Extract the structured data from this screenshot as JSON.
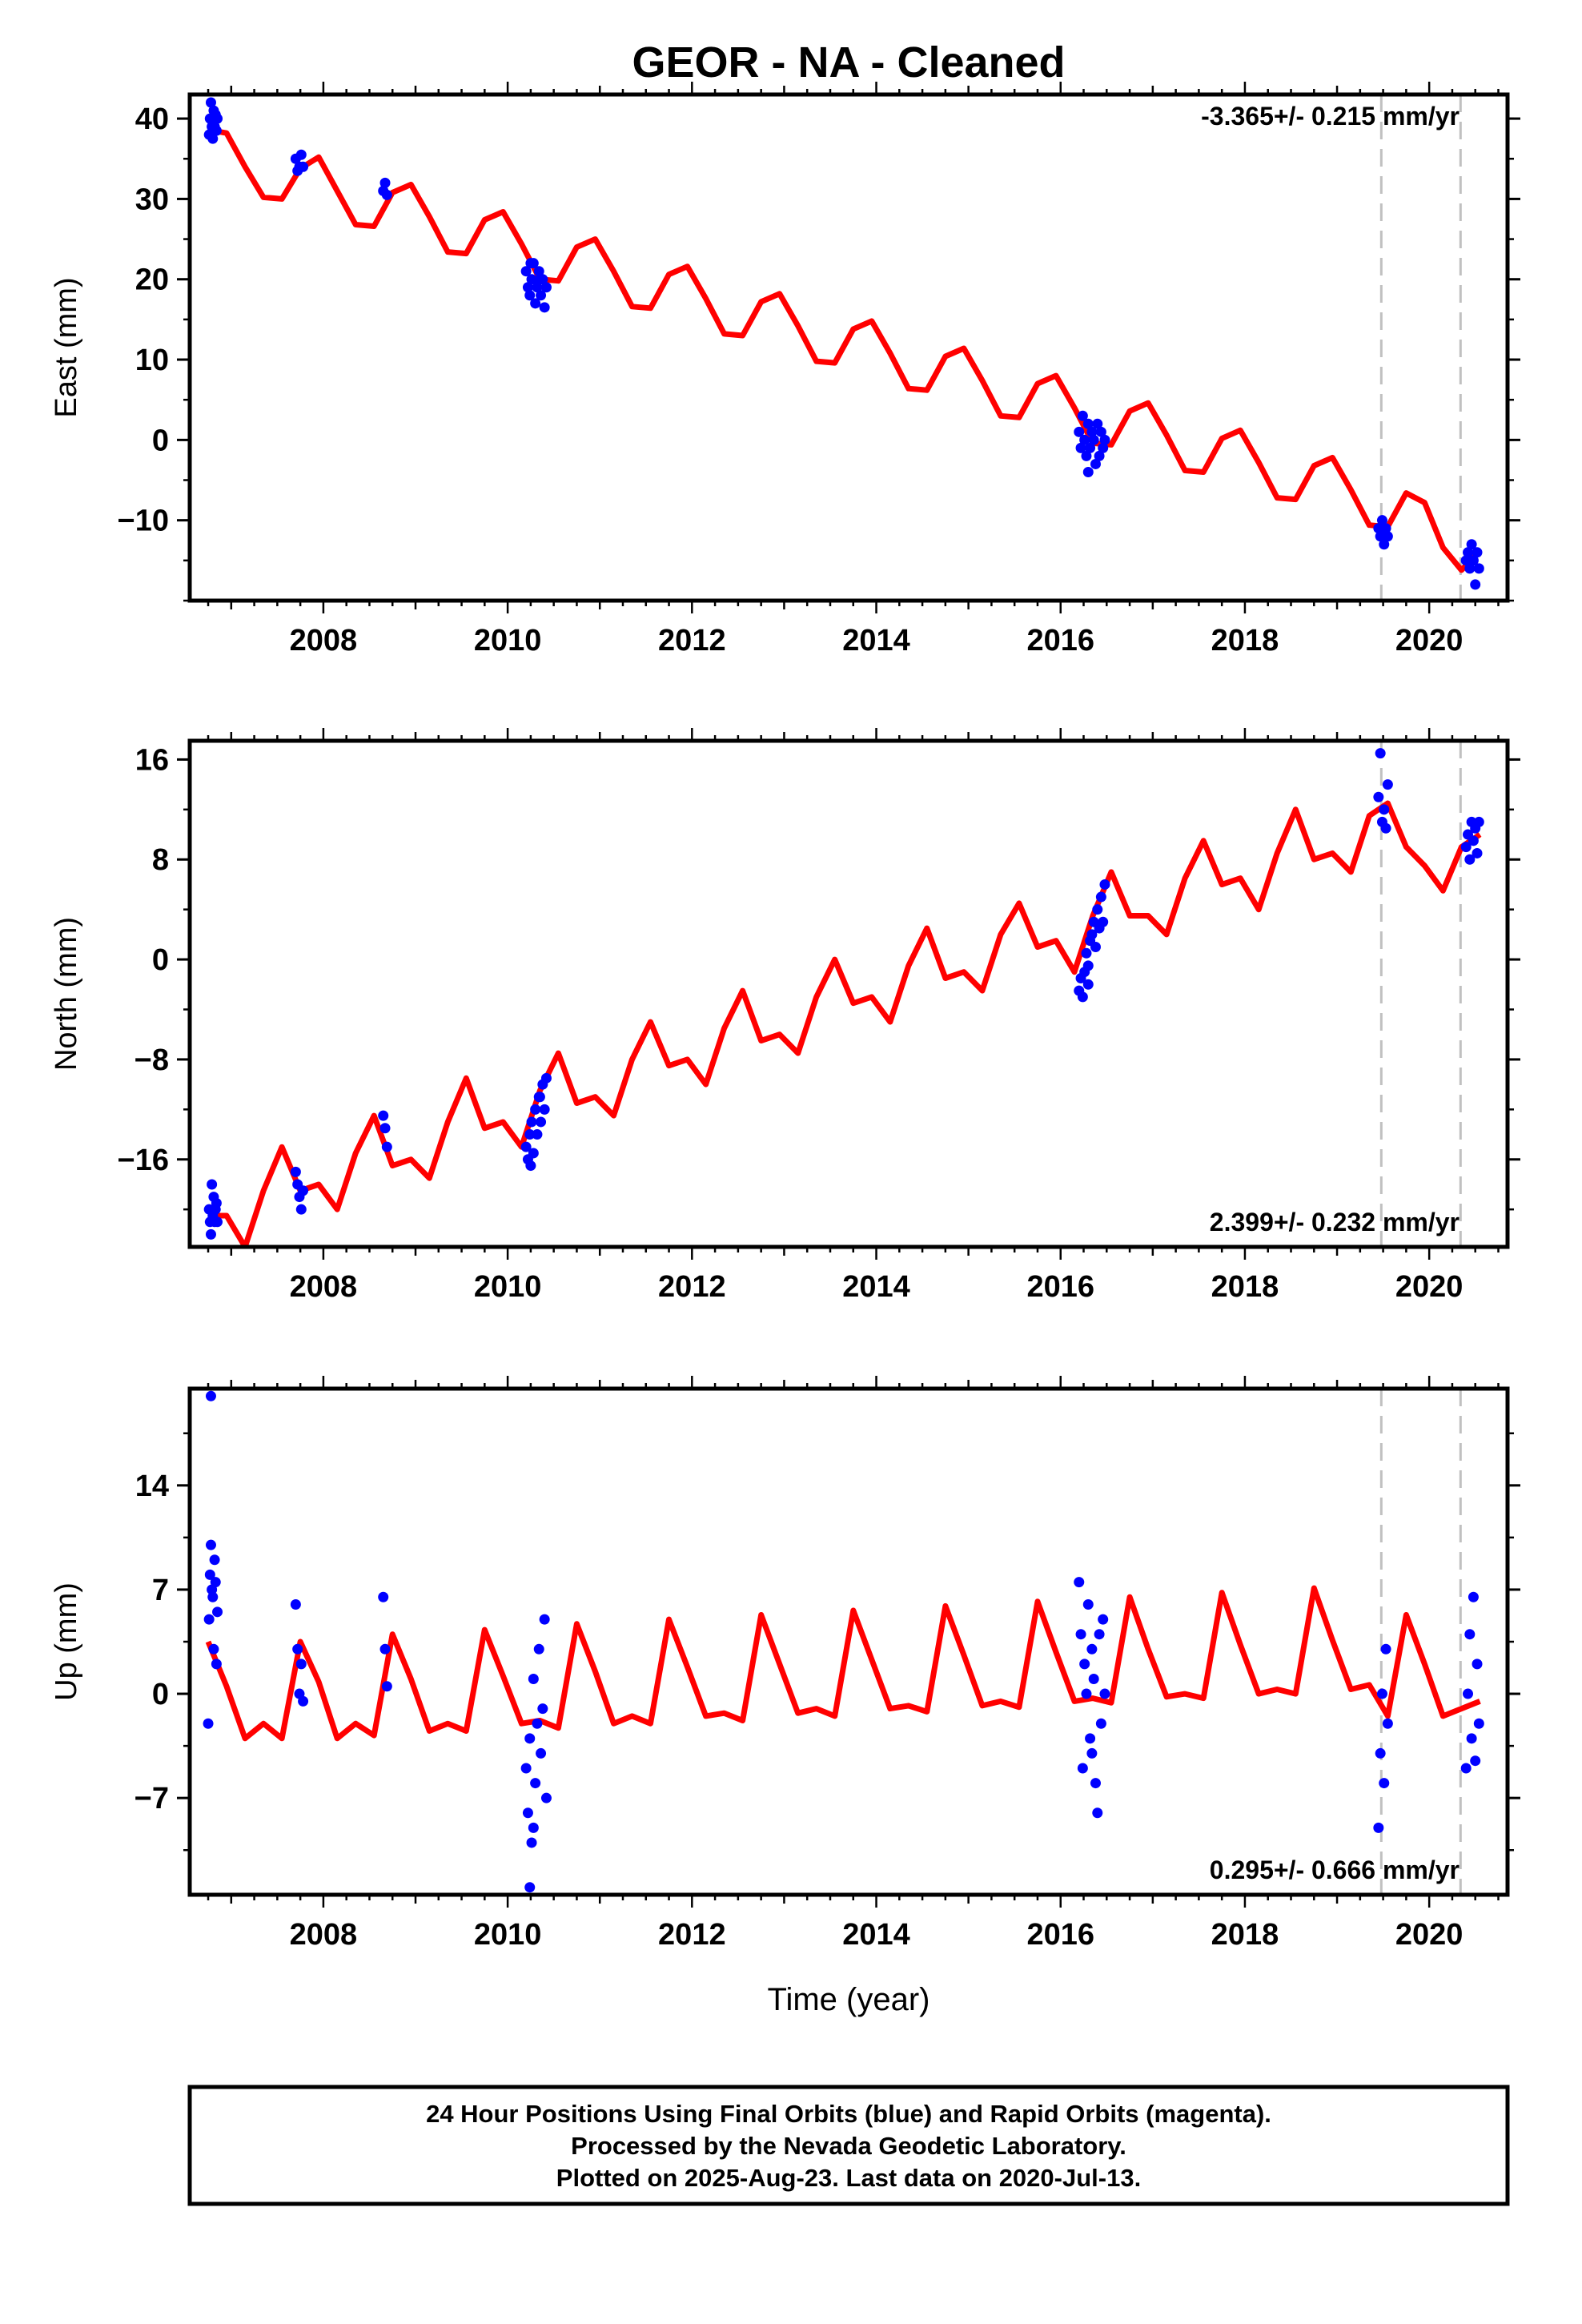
{
  "title": "GEOR  - NA - Cleaned",
  "colors": {
    "final_orbits": "#0000ff",
    "model": "#ff0000",
    "offset_lines": "#c0c0c0",
    "frame": "#000000"
  },
  "xlabel": "Time (year)",
  "footer": [
    "24 Hour Positions Using Final Orbits (blue) and Rapid Orbits (magenta).",
    "Processed by the Nevada Geodetic Laboratory.",
    "Plotted on 2025-Aug-23. Last data on 2020-Jul-13."
  ],
  "chart_data": [
    {
      "type": "scatter",
      "component": "east",
      "ylabel": "East (mm)",
      "xlim": [
        2006.55,
        2020.85
      ],
      "ylim": [
        -20,
        43
      ],
      "xticks": [
        2008,
        2010,
        2012,
        2014,
        2016,
        2018,
        2020
      ],
      "yticks": [
        -10,
        0,
        10,
        20,
        30,
        40
      ],
      "rate_label": "-3.365+/- 0.215 mm/yr",
      "rate_position": "top-right",
      "offset_lines": [
        2019.48,
        2020.34
      ],
      "model_line": {
        "name": "model",
        "x": [
          2006.75,
          2006.95,
          2007.15,
          2007.35,
          2007.55,
          2007.75,
          2007.95,
          2008.15,
          2008.35,
          2008.55,
          2008.75,
          2008.95,
          2009.15,
          2009.35,
          2009.55,
          2009.75,
          2009.95,
          2010.15,
          2010.35,
          2010.55,
          2010.75,
          2010.95,
          2011.15,
          2011.35,
          2011.55,
          2011.75,
          2011.95,
          2012.15,
          2012.35,
          2012.55,
          2012.75,
          2012.95,
          2013.15,
          2013.35,
          2013.55,
          2013.75,
          2013.95,
          2014.15,
          2014.35,
          2014.55,
          2014.75,
          2014.95,
          2015.15,
          2015.35,
          2015.55,
          2015.75,
          2015.95,
          2016.15,
          2016.35,
          2016.55,
          2016.75,
          2016.95,
          2017.15,
          2017.35,
          2017.55,
          2017.75,
          2017.95,
          2018.15,
          2018.35,
          2018.55,
          2018.75,
          2018.95,
          2019.15,
          2019.35,
          2019.55,
          2019.75,
          2019.95,
          2020.15,
          2020.35,
          2020.55
        ],
        "y": [
          38.6,
          38.2,
          34.0,
          30.2,
          30.0,
          33.8,
          35.2,
          31.0,
          26.8,
          26.6,
          30.8,
          31.8,
          27.8,
          23.4,
          23.2,
          27.4,
          28.4,
          24.4,
          20.0,
          19.8,
          24.0,
          25.0,
          21.0,
          16.6,
          16.4,
          20.6,
          21.6,
          17.6,
          13.2,
          13.0,
          17.2,
          18.2,
          14.2,
          9.8,
          9.6,
          13.8,
          14.8,
          10.8,
          6.4,
          6.2,
          10.4,
          11.4,
          7.4,
          3.0,
          2.8,
          7.0,
          8.0,
          4.0,
          -0.4,
          -0.6,
          3.6,
          4.6,
          0.6,
          -3.8,
          -4.0,
          0.2,
          1.2,
          -2.8,
          -7.2,
          -7.4,
          -3.2,
          -2.2,
          -6.2,
          -10.6,
          -10.8,
          -6.6,
          -7.8,
          -13.4,
          -16.2,
          -13.8
        ]
      },
      "series": [
        {
          "name": "final orbits",
          "x": [
            2006.76,
            2006.77,
            2006.78,
            2006.79,
            2006.8,
            2006.81,
            2006.82,
            2006.83,
            2006.84,
            2006.85,
            2007.7,
            2007.72,
            2007.74,
            2007.76,
            2007.78,
            2008.65,
            2008.67,
            2008.69,
            2010.2,
            2010.22,
            2010.24,
            2010.26,
            2010.28,
            2010.3,
            2010.32,
            2010.34,
            2010.36,
            2010.38,
            2010.4,
            2010.42,
            2010.25,
            2010.35,
            2016.2,
            2016.22,
            2016.24,
            2016.26,
            2016.28,
            2016.3,
            2016.32,
            2016.34,
            2016.36,
            2016.38,
            2016.4,
            2016.42,
            2016.44,
            2016.46,
            2016.48,
            2016.3,
            2019.45,
            2019.47,
            2019.49,
            2019.51,
            2019.53,
            2019.55,
            2020.4,
            2020.42,
            2020.44,
            2020.46,
            2020.48,
            2020.5,
            2020.52,
            2020.54
          ],
          "y": [
            38,
            40,
            42,
            39,
            37.5,
            41,
            39,
            40.5,
            38.5,
            40,
            35,
            33.5,
            34,
            35.5,
            34,
            31,
            32,
            30.5,
            21,
            19,
            18,
            20,
            22,
            17,
            19,
            21,
            18,
            20,
            16.5,
            19,
            22,
            20,
            1,
            -1,
            3,
            0,
            -2,
            2,
            -1,
            1,
            0,
            -3,
            2,
            -2,
            1,
            -1,
            0,
            -4,
            -11,
            -12,
            -10,
            -13,
            -11,
            -12,
            -15,
            -14,
            -16,
            -13,
            -15,
            -18,
            -14,
            -16
          ]
        }
      ]
    },
    {
      "type": "scatter",
      "component": "north",
      "ylabel": "North (mm)",
      "xlim": [
        2006.55,
        2020.85
      ],
      "ylim": [
        -23,
        17.5
      ],
      "xticks": [
        2008,
        2010,
        2012,
        2014,
        2016,
        2018,
        2020
      ],
      "yticks": [
        -16,
        -8,
        0,
        8,
        16
      ],
      "rate_label": "2.399+/- 0.232 mm/yr",
      "rate_position": "bottom-right",
      "offset_lines": [
        2019.48,
        2020.34
      ],
      "model_line": {
        "name": "model",
        "x": [
          2006.75,
          2006.95,
          2007.15,
          2007.35,
          2007.55,
          2007.75,
          2007.95,
          2008.15,
          2008.35,
          2008.55,
          2008.75,
          2008.95,
          2009.15,
          2009.35,
          2009.55,
          2009.75,
          2009.95,
          2010.15,
          2010.35,
          2010.55,
          2010.75,
          2010.95,
          2011.15,
          2011.35,
          2011.55,
          2011.75,
          2011.95,
          2012.15,
          2012.35,
          2012.55,
          2012.75,
          2012.95,
          2013.15,
          2013.35,
          2013.55,
          2013.75,
          2013.95,
          2014.15,
          2014.35,
          2014.55,
          2014.75,
          2014.95,
          2015.15,
          2015.35,
          2015.55,
          2015.75,
          2015.95,
          2016.15,
          2016.35,
          2016.55,
          2016.75,
          2016.95,
          2017.15,
          2017.35,
          2017.55,
          2017.75,
          2017.95,
          2018.15,
          2018.35,
          2018.55,
          2018.75,
          2018.95,
          2019.15,
          2019.35,
          2019.55,
          2019.75,
          2019.95,
          2020.15,
          2020.35,
          2020.55
        ],
        "y": [
          -20.5,
          -20.5,
          -23.0,
          -18.5,
          -15.0,
          -18.5,
          -18.0,
          -20.0,
          -15.5,
          -12.5,
          -16.5,
          -16.0,
          -17.5,
          -13.0,
          -9.5,
          -13.5,
          -13.0,
          -15.0,
          -10.5,
          -7.5,
          -11.5,
          -11.0,
          -12.5,
          -8.0,
          -5.0,
          -8.5,
          -8.0,
          -10.0,
          -5.5,
          -2.5,
          -6.5,
          -6.0,
          -7.5,
          -3.0,
          0.0,
          -3.5,
          -3.0,
          -5.0,
          -0.5,
          2.5,
          -1.5,
          -1.0,
          -2.5,
          2.0,
          4.5,
          1.0,
          1.5,
          -1.0,
          3.5,
          7.0,
          3.5,
          3.5,
          2.0,
          6.5,
          9.5,
          6.0,
          6.5,
          4.0,
          8.5,
          12.0,
          8.0,
          8.5,
          7.0,
          11.5,
          12.5,
          9.0,
          7.5,
          5.5,
          9.0,
          10.0
        ]
      },
      "series": [
        {
          "name": "final orbits",
          "x": [
            2006.76,
            2006.77,
            2006.78,
            2006.79,
            2006.8,
            2006.81,
            2006.82,
            2006.83,
            2006.84,
            2006.85,
            2007.7,
            2007.72,
            2007.74,
            2007.76,
            2007.78,
            2008.65,
            2008.67,
            2008.69,
            2010.2,
            2010.22,
            2010.24,
            2010.26,
            2010.28,
            2010.3,
            2010.32,
            2010.34,
            2010.36,
            2010.38,
            2010.4,
            2010.42,
            2010.25,
            2010.35,
            2016.2,
            2016.22,
            2016.24,
            2016.26,
            2016.28,
            2016.3,
            2016.32,
            2016.34,
            2016.36,
            2016.38,
            2016.4,
            2016.42,
            2016.44,
            2016.46,
            2016.48,
            2016.3,
            2019.45,
            2019.47,
            2019.49,
            2019.51,
            2019.53,
            2019.55,
            2020.4,
            2020.42,
            2020.44,
            2020.46,
            2020.48,
            2020.5,
            2020.52,
            2020.54
          ],
          "y": [
            -20,
            -21,
            -22,
            -18,
            -20.5,
            -19,
            -21,
            -20,
            -19.5,
            -21,
            -17,
            -18,
            -19,
            -20,
            -18.5,
            -12.5,
            -13.5,
            -15,
            -15,
            -16,
            -14,
            -13,
            -15.5,
            -12,
            -14,
            -11,
            -13,
            -10,
            -12,
            -9.5,
            -16.5,
            -11,
            -2.5,
            -1.5,
            -3,
            -1,
            0.5,
            -2,
            1.5,
            2,
            3,
            1,
            4,
            2.5,
            5,
            3,
            6,
            -0.5,
            13,
            16.5,
            11,
            12,
            10.5,
            14,
            9,
            10,
            8,
            11,
            9.5,
            10.5,
            8.5,
            11
          ]
        }
      ]
    },
    {
      "type": "scatter",
      "component": "up",
      "ylabel": "Up (mm)",
      "xlim": [
        2006.55,
        2020.85
      ],
      "ylim": [
        -13.5,
        20.5
      ],
      "xticks": [
        2008,
        2010,
        2012,
        2014,
        2016,
        2018,
        2020
      ],
      "yticks": [
        -7,
        0,
        7,
        14
      ],
      "rate_label": "0.295+/- 0.666 mm/yr",
      "rate_position": "bottom-right",
      "offset_lines": [
        2019.48,
        2020.34
      ],
      "model_line": {
        "name": "model",
        "x": [
          2006.75,
          2006.95,
          2007.15,
          2007.35,
          2007.55,
          2007.75,
          2007.95,
          2008.15,
          2008.35,
          2008.55,
          2008.75,
          2008.95,
          2009.15,
          2009.35,
          2009.55,
          2009.75,
          2009.95,
          2010.15,
          2010.35,
          2010.55,
          2010.75,
          2010.95,
          2011.15,
          2011.35,
          2011.55,
          2011.75,
          2011.95,
          2012.15,
          2012.35,
          2012.55,
          2012.75,
          2012.95,
          2013.15,
          2013.35,
          2013.55,
          2013.75,
          2013.95,
          2014.15,
          2014.35,
          2014.55,
          2014.75,
          2014.95,
          2015.15,
          2015.35,
          2015.55,
          2015.75,
          2015.95,
          2016.15,
          2016.35,
          2016.55,
          2016.75,
          2016.95,
          2017.15,
          2017.35,
          2017.55,
          2017.75,
          2017.95,
          2018.15,
          2018.35,
          2018.55,
          2018.75,
          2018.95,
          2019.15,
          2019.35,
          2019.55,
          2019.75,
          2019.95,
          2020.15,
          2020.35,
          2020.55
        ],
        "y": [
          3.5,
          0.5,
          -3.0,
          -2.0,
          -3.0,
          3.5,
          0.8,
          -3.0,
          -2.0,
          -2.8,
          4.0,
          1.0,
          -2.5,
          -2.0,
          -2.5,
          4.3,
          1.2,
          -2.0,
          -1.8,
          -2.3,
          4.7,
          1.5,
          -2.0,
          -1.5,
          -2.0,
          5.0,
          1.8,
          -1.5,
          -1.3,
          -1.8,
          5.3,
          2.0,
          -1.3,
          -1.0,
          -1.5,
          5.6,
          2.3,
          -1.0,
          -0.8,
          -1.2,
          5.9,
          2.6,
          -0.8,
          -0.5,
          -0.9,
          6.2,
          2.8,
          -0.5,
          -0.3,
          -0.6,
          6.5,
          3.0,
          -0.2,
          0.0,
          -0.3,
          6.8,
          3.3,
          0.0,
          0.3,
          0.0,
          7.1,
          3.6,
          0.3,
          0.6,
          -1.5,
          5.3,
          2.0,
          -1.5,
          -1.0,
          -0.5
        ]
      },
      "series": [
        {
          "name": "final orbits",
          "x": [
            2006.75,
            2006.76,
            2006.77,
            2006.78,
            2006.79,
            2006.8,
            2006.81,
            2006.82,
            2006.83,
            2006.84,
            2006.85,
            2006.78,
            2007.7,
            2007.72,
            2007.74,
            2007.76,
            2007.78,
            2008.65,
            2008.67,
            2008.69,
            2010.2,
            2010.22,
            2010.24,
            2010.26,
            2010.28,
            2010.3,
            2010.32,
            2010.34,
            2010.36,
            2010.38,
            2010.4,
            2010.42,
            2010.24,
            2010.28,
            2016.2,
            2016.22,
            2016.24,
            2016.26,
            2016.28,
            2016.3,
            2016.32,
            2016.34,
            2016.36,
            2016.38,
            2016.4,
            2016.42,
            2016.44,
            2016.46,
            2016.48,
            2016.34,
            2019.45,
            2019.47,
            2019.49,
            2019.51,
            2019.53,
            2019.55,
            2020.4,
            2020.42,
            2020.44,
            2020.46,
            2020.48,
            2020.5,
            2020.52,
            2020.54
          ],
          "y": [
            -2,
            5,
            8,
            10,
            7,
            6.5,
            3,
            9,
            7.5,
            2,
            5.5,
            20,
            6,
            3,
            0,
            2,
            -0.5,
            6.5,
            3,
            0.5,
            -5,
            -8,
            -3,
            -10,
            1,
            -6,
            -2,
            3,
            -4,
            -1,
            5,
            -7,
            -13,
            -9,
            7.5,
            4,
            -5,
            2,
            0,
            6,
            -3,
            3,
            1,
            -6,
            -8,
            4,
            -2,
            5,
            0,
            -4,
            -9,
            -4,
            0,
            -6,
            3,
            -2,
            -5,
            0,
            4,
            -3,
            6.5,
            -4.5,
            2,
            -2
          ]
        }
      ]
    }
  ]
}
